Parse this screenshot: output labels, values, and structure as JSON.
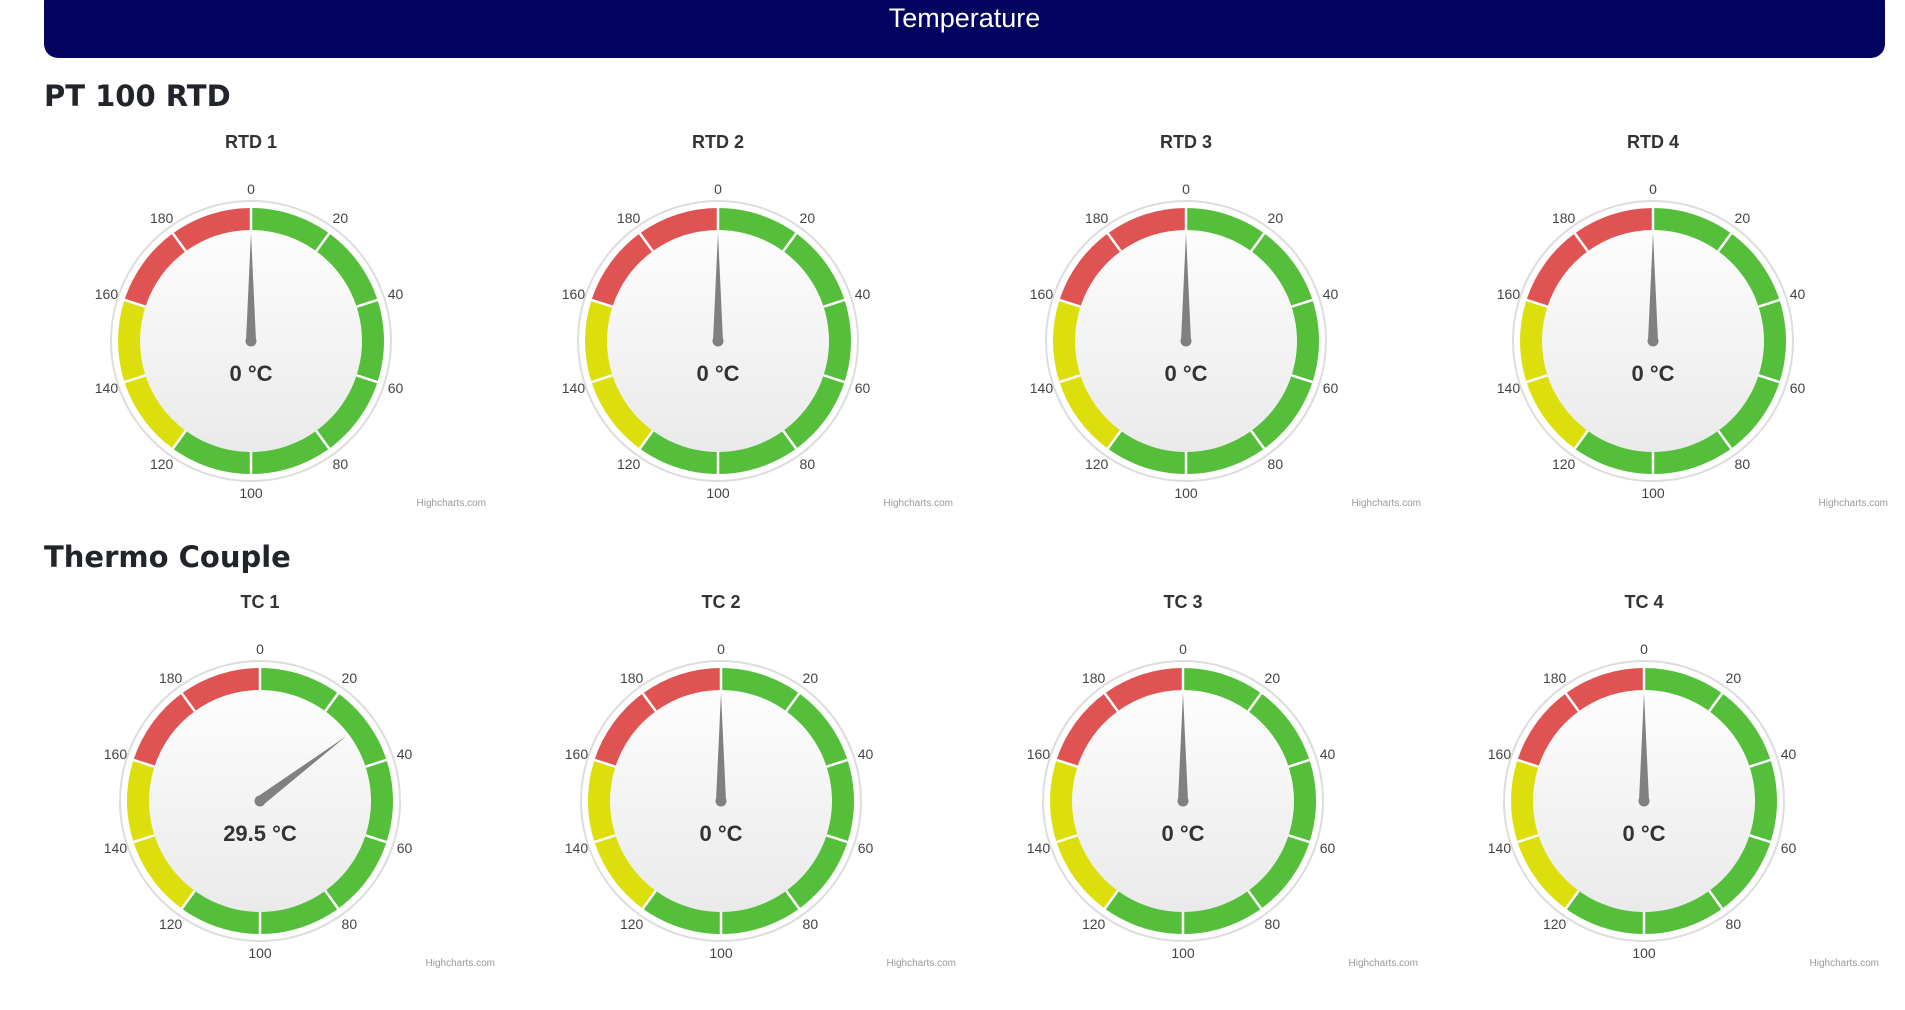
{
  "header": {
    "title": "Temperature"
  },
  "colors": {
    "banner": "#020460",
    "band_green": "#55BF3B",
    "band_yellow": "#DDDF0D",
    "band_red": "#DF5353",
    "needle": "#808080"
  },
  "gauge_scale": {
    "min": 0,
    "max": 200,
    "ticks": [
      "0",
      "20",
      "40",
      "60",
      "80",
      "100",
      "120",
      "140",
      "160",
      "180"
    ]
  },
  "credits": "Highcharts.com",
  "sections": [
    {
      "title": "PT 100 RTD",
      "gauges": [
        {
          "title": "RTD 1",
          "value": 0,
          "value_text": "0 °C"
        },
        {
          "title": "RTD 2",
          "value": 0,
          "value_text": "0 °C"
        },
        {
          "title": "RTD 3",
          "value": 0,
          "value_text": "0 °C"
        },
        {
          "title": "RTD 4",
          "value": 0,
          "value_text": "0 °C"
        }
      ]
    },
    {
      "title": "Thermo Couple",
      "gauges": [
        {
          "title": "TC 1",
          "value": 29.5,
          "value_text": "29.5 °C"
        },
        {
          "title": "TC 2",
          "value": 0,
          "value_text": "0 °C"
        },
        {
          "title": "TC 3",
          "value": 0,
          "value_text": "0 °C"
        },
        {
          "title": "TC 4",
          "value": 0,
          "value_text": "0 °C"
        }
      ]
    }
  ]
}
